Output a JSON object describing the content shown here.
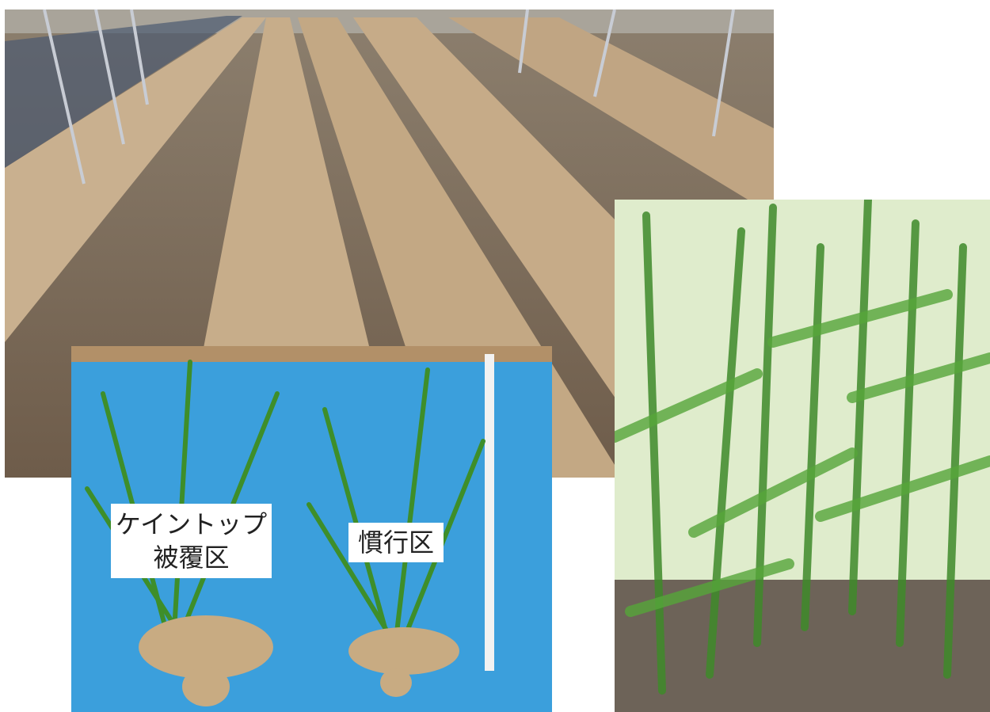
{
  "labels": [
    {
      "lines": [
        "ケイントップ",
        "被覆区"
      ]
    },
    {
      "lines": [
        "慣行区"
      ]
    }
  ]
}
